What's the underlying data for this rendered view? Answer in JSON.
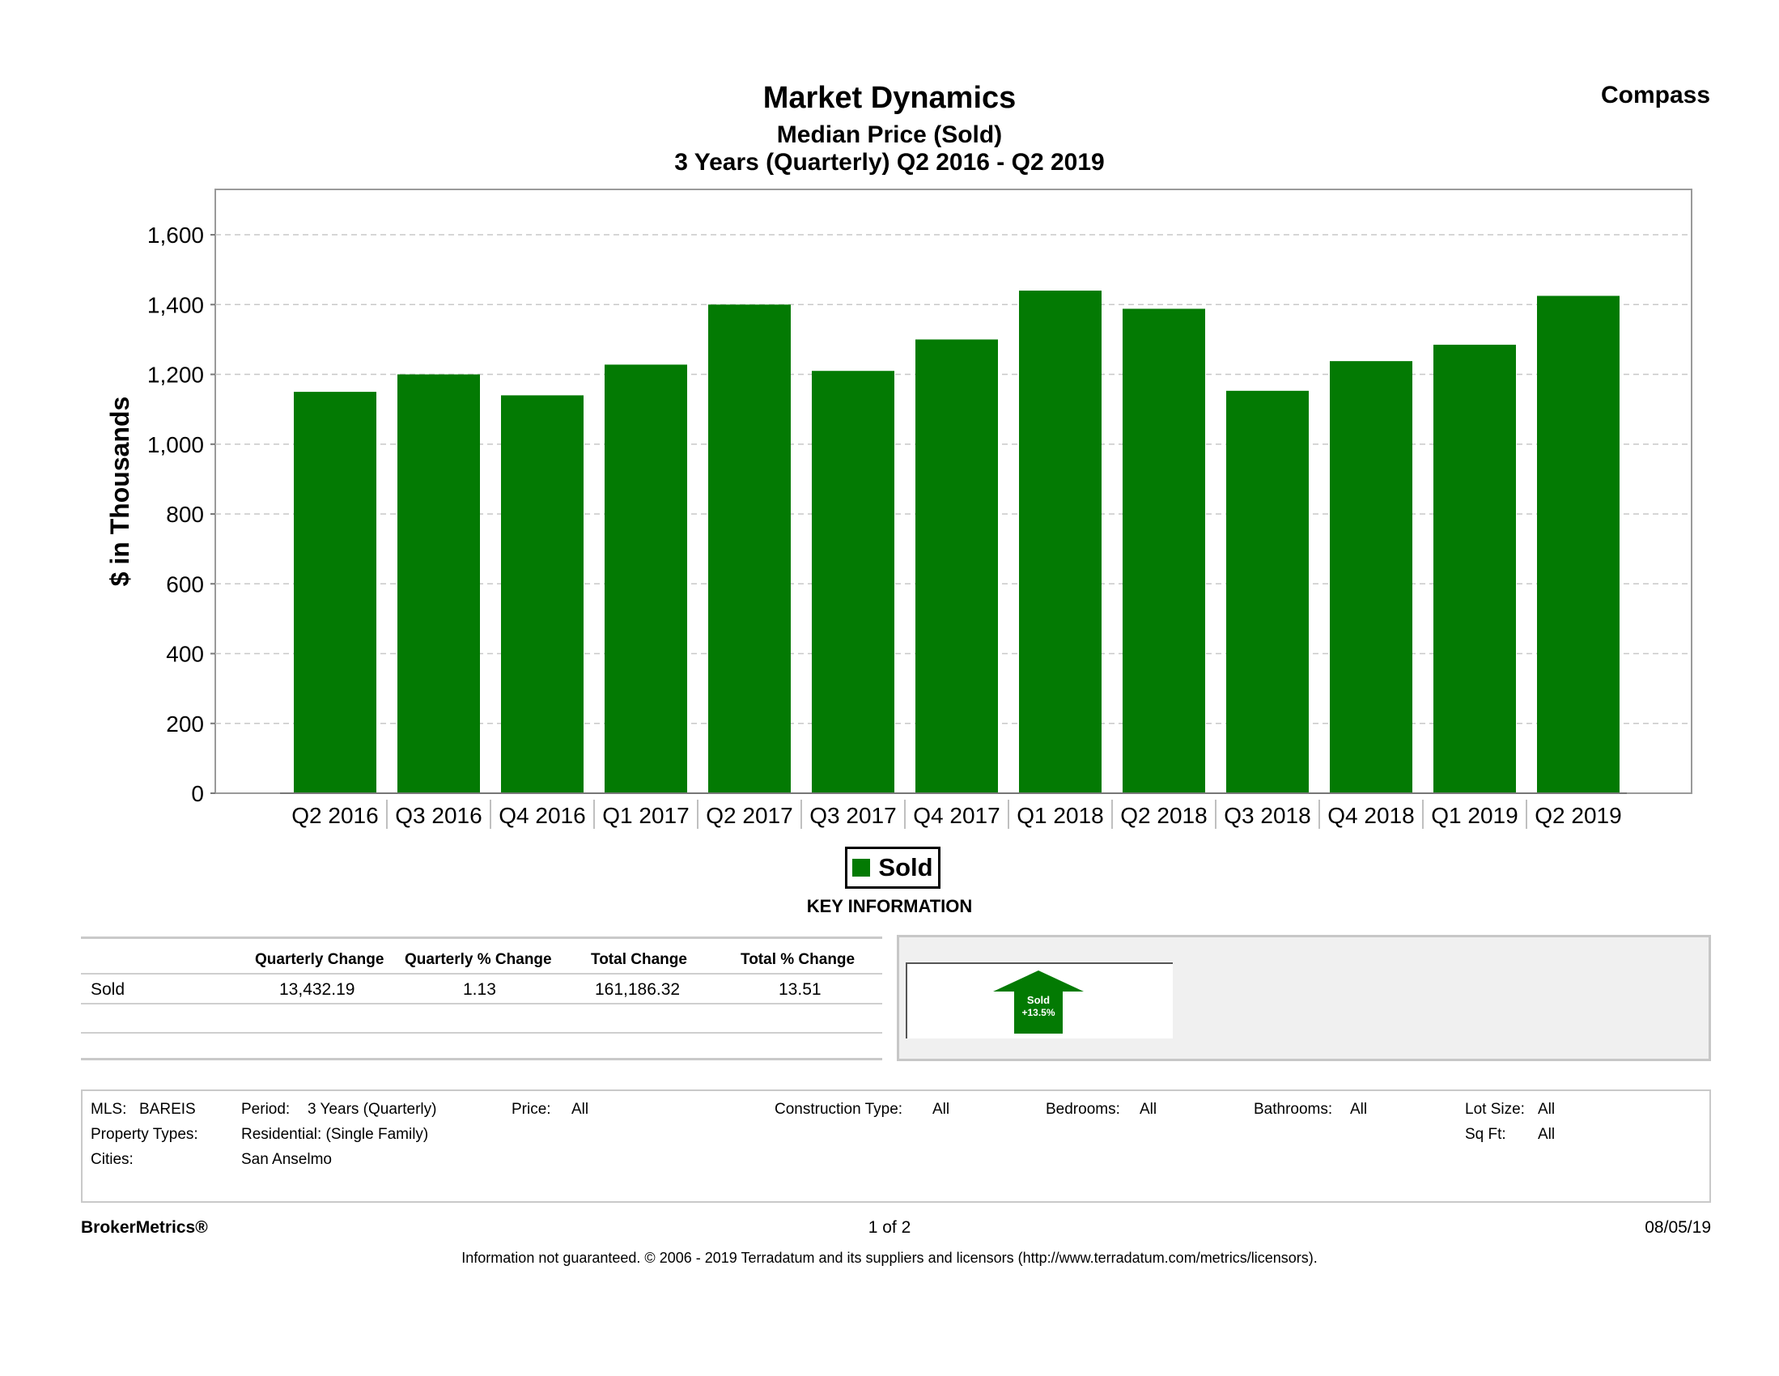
{
  "header": {
    "title": "Market Dynamics",
    "subtitle": "Median Price (Sold)",
    "period": "3 Years (Quarterly) Q2 2016 - Q2 2019",
    "brand": "Compass"
  },
  "chart_data": {
    "type": "bar",
    "ylabel": "$ in Thousands",
    "xlabel": "",
    "ylim": [
      0,
      1730
    ],
    "yticks": [
      0,
      200,
      400,
      600,
      800,
      1000,
      1200,
      1400,
      1600
    ],
    "ytick_labels": [
      "0",
      "200",
      "400",
      "600",
      "800",
      "1,000",
      "1,200",
      "1,400",
      "1,600"
    ],
    "grid": true,
    "categories": [
      "Q2 2016",
      "Q3 2016",
      "Q4 2016",
      "Q1 2017",
      "Q2 2017",
      "Q3 2017",
      "Q4 2017",
      "Q1 2018",
      "Q2 2018",
      "Q3 2018",
      "Q4 2018",
      "Q1 2019",
      "Q2 2019"
    ],
    "series": [
      {
        "name": "Sold",
        "color": "#037a03",
        "values": [
          1150,
          1200,
          1140,
          1228,
          1400,
          1210,
          1300,
          1440,
          1388,
          1153,
          1238,
          1285,
          1425
        ]
      }
    ]
  },
  "legend": {
    "label": "Sold",
    "color": "#037a03"
  },
  "key_information": {
    "title": "KEY INFORMATION",
    "headers": [
      "Quarterly Change",
      "Quarterly % Change",
      "Total Change",
      "Total % Change"
    ],
    "rows": [
      {
        "label": "Sold",
        "values": [
          "13,432.19",
          "1.13",
          "161,186.32",
          "13.51"
        ]
      }
    ],
    "badge": {
      "line1": "Sold",
      "line2": "+13.5%",
      "icon": "up-arrow-icon",
      "color": "#037a03"
    }
  },
  "filters": {
    "mls_label": "MLS:",
    "mls_value": "BAREIS",
    "period_label": "Period:",
    "period_value": "3 Years (Quarterly)",
    "price_label": "Price:",
    "price_value": "All",
    "construction_label": "Construction Type:",
    "construction_value": "All",
    "bedrooms_label": "Bedrooms:",
    "bedrooms_value": "All",
    "bathrooms_label": "Bathrooms:",
    "bathrooms_value": "All",
    "lotsize_label": "Lot Size:",
    "lotsize_value": "All",
    "proptypes_label": "Property Types:",
    "proptypes_value": "Residential: (Single Family)",
    "sqft_label": "Sq Ft:",
    "sqft_value": "All",
    "cities_label": "Cities:",
    "cities_value": "San Anselmo"
  },
  "footer": {
    "left": "BrokerMetrics®",
    "center": "1 of 2",
    "right": "08/05/19",
    "disclaimer": "Information not guaranteed.  © 2006 - 2019 Terradatum and its suppliers and licensors (http://www.terradatum.com/metrics/licensors)."
  }
}
